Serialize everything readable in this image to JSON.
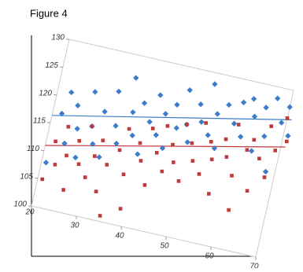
{
  "chart_data": {
    "type": "scatter",
    "title": "Figure 4",
    "xlim": [
      20,
      70
    ],
    "ylim": [
      100,
      130
    ],
    "xticks": [
      20,
      30,
      40,
      50,
      60,
      70
    ],
    "yticks": [
      100,
      105,
      110,
      115,
      120,
      125,
      130
    ],
    "series": [
      {
        "color": "#3d7cc9",
        "marker": "diamond",
        "x": [
          21,
          22,
          23,
          24,
          25,
          26,
          27,
          28,
          29,
          30,
          31,
          32,
          33,
          34,
          35,
          36,
          37,
          38,
          39,
          40,
          41,
          42,
          43,
          44,
          45,
          46,
          47,
          48,
          49,
          50,
          51,
          52,
          53,
          54,
          55,
          56,
          57,
          59,
          60,
          61,
          62,
          63,
          64,
          65,
          66,
          67,
          68,
          69,
          70,
          71
        ],
        "values": [
          108,
          117,
          121,
          112,
          119,
          115,
          110,
          122,
          116,
          113,
          119,
          111,
          123,
          117,
          114,
          126,
          120,
          116,
          122,
          113,
          119,
          124,
          117,
          121,
          115,
          123,
          119,
          126,
          120,
          117,
          124,
          121,
          128,
          119,
          123,
          117,
          125,
          122,
          126,
          120,
          127,
          124,
          118,
          126,
          121,
          128,
          115,
          124,
          127,
          122
        ]
      },
      {
        "color": "#c0393b",
        "marker": "square",
        "x": [
          21,
          22,
          23,
          24,
          25,
          26,
          27,
          28,
          29,
          30,
          31,
          32,
          33,
          34,
          35,
          36,
          37,
          38,
          39,
          40,
          41,
          42,
          43,
          44,
          45,
          46,
          47,
          48,
          49,
          50,
          51,
          52,
          53,
          54,
          55,
          56,
          57,
          58,
          59,
          60,
          61,
          62,
          63,
          64,
          65,
          66,
          67,
          68,
          69,
          70,
          71
        ],
        "values": [
          105,
          112,
          108,
          115,
          110,
          104,
          113,
          109,
          116,
          107,
          111,
          114,
          105,
          110,
          101,
          113,
          117,
          109,
          103,
          115,
          112,
          118,
          108,
          114,
          119,
          111,
          116,
          113,
          120,
          110,
          117,
          114,
          121,
          112,
          118,
          115,
          109,
          119,
          116,
          122,
          113,
          107,
          118,
          120,
          111,
          117,
          123,
          114,
          119,
          125,
          121
        ]
      }
    ],
    "trendlines": [
      {
        "color": "#3d7cc9",
        "x": [
          20,
          71
        ],
        "values": [
          116.3,
          124.9
        ]
      },
      {
        "color": "#c0393b",
        "x": [
          20,
          71
        ],
        "values": [
          110.9,
          120.0
        ]
      }
    ]
  }
}
